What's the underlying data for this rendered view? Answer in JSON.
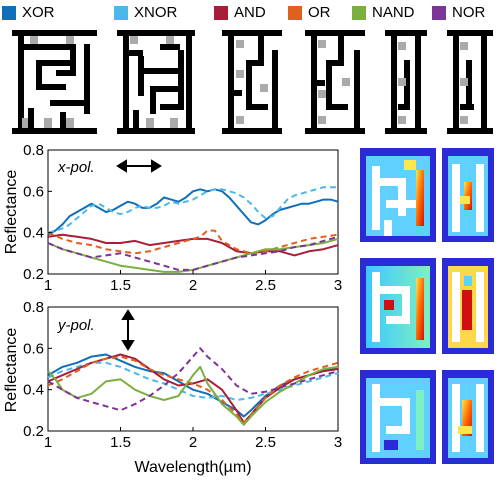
{
  "legend": [
    {
      "label": "XOR",
      "color": "#0f6fb8"
    },
    {
      "label": "XNOR",
      "color": "#4cb8ea"
    },
    {
      "label": "AND",
      "color": "#a81d3a"
    },
    {
      "label": "OR",
      "color": "#e0601e"
    },
    {
      "label": "NAND",
      "color": "#7ab040"
    },
    {
      "label": "NOR",
      "color": "#7c3596"
    }
  ],
  "chart_data": [
    {
      "type": "line",
      "annotation": "x-pol.",
      "xlabel": "",
      "ylabel": "Reflectance",
      "xlim": [
        1,
        3
      ],
      "ylim": [
        0.2,
        0.8
      ],
      "xticks": [
        "1",
        "1.5",
        "2",
        "2.5",
        "3"
      ],
      "yticks": [
        "0.2",
        "0.4",
        "0.6",
        "0.8"
      ],
      "series": [
        {
          "name": "XOR",
          "color": "#0f6fb8",
          "dash": false,
          "x": [
            1.0,
            1.05,
            1.1,
            1.15,
            1.2,
            1.25,
            1.3,
            1.35,
            1.4,
            1.45,
            1.5,
            1.55,
            1.6,
            1.65,
            1.7,
            1.75,
            1.8,
            1.85,
            1.9,
            1.95,
            2.0,
            2.05,
            2.1,
            2.15,
            2.2,
            2.25,
            2.3,
            2.35,
            2.4,
            2.45,
            2.5,
            2.55,
            2.6,
            2.65,
            2.7,
            2.75,
            2.8,
            2.85,
            2.9,
            2.95,
            3.0
          ],
          "y": [
            0.39,
            0.41,
            0.44,
            0.48,
            0.5,
            0.52,
            0.54,
            0.52,
            0.5,
            0.51,
            0.53,
            0.55,
            0.54,
            0.52,
            0.52,
            0.54,
            0.57,
            0.56,
            0.55,
            0.57,
            0.6,
            0.61,
            0.6,
            0.61,
            0.6,
            0.57,
            0.53,
            0.49,
            0.45,
            0.44,
            0.46,
            0.49,
            0.51,
            0.52,
            0.53,
            0.54,
            0.54,
            0.55,
            0.56,
            0.56,
            0.55
          ]
        },
        {
          "name": "XNOR",
          "color": "#4cb8ea",
          "dash": true,
          "x": [
            1.0,
            1.05,
            1.1,
            1.15,
            1.2,
            1.25,
            1.3,
            1.35,
            1.4,
            1.45,
            1.5,
            1.55,
            1.6,
            1.65,
            1.7,
            1.75,
            1.8,
            1.85,
            1.9,
            1.95,
            2.0,
            2.05,
            2.1,
            2.15,
            2.2,
            2.25,
            2.3,
            2.35,
            2.4,
            2.45,
            2.5,
            2.55,
            2.6,
            2.65,
            2.7,
            2.75,
            2.8,
            2.85,
            2.9,
            2.95,
            3.0
          ],
          "y": [
            0.4,
            0.41,
            0.42,
            0.44,
            0.47,
            0.5,
            0.53,
            0.54,
            0.52,
            0.5,
            0.49,
            0.5,
            0.52,
            0.53,
            0.52,
            0.52,
            0.53,
            0.55,
            0.54,
            0.55,
            0.56,
            0.58,
            0.6,
            0.61,
            0.61,
            0.6,
            0.59,
            0.57,
            0.54,
            0.5,
            0.47,
            0.48,
            0.52,
            0.56,
            0.58,
            0.59,
            0.6,
            0.61,
            0.62,
            0.62,
            0.62
          ]
        },
        {
          "name": "AND",
          "color": "#a81d3a",
          "dash": false,
          "x": [
            1.0,
            1.1,
            1.2,
            1.3,
            1.4,
            1.5,
            1.6,
            1.7,
            1.8,
            1.9,
            2.0,
            2.1,
            2.2,
            2.3,
            2.4,
            2.5,
            2.6,
            2.7,
            2.8,
            2.9,
            3.0
          ],
          "y": [
            0.38,
            0.39,
            0.38,
            0.37,
            0.35,
            0.35,
            0.36,
            0.34,
            0.35,
            0.36,
            0.37,
            0.37,
            0.35,
            0.31,
            0.3,
            0.31,
            0.31,
            0.29,
            0.31,
            0.32,
            0.34
          ]
        },
        {
          "name": "OR",
          "color": "#e0601e",
          "dash": true,
          "x": [
            1.0,
            1.1,
            1.2,
            1.3,
            1.4,
            1.5,
            1.6,
            1.7,
            1.8,
            1.9,
            2.0,
            2.05,
            2.1,
            2.15,
            2.2,
            2.3,
            2.4,
            2.5,
            2.6,
            2.7,
            2.8,
            2.9,
            3.0
          ],
          "y": [
            0.4,
            0.37,
            0.35,
            0.34,
            0.32,
            0.31,
            0.3,
            0.31,
            0.33,
            0.35,
            0.37,
            0.38,
            0.41,
            0.41,
            0.36,
            0.32,
            0.3,
            0.31,
            0.33,
            0.35,
            0.37,
            0.38,
            0.39
          ]
        },
        {
          "name": "NAND",
          "color": "#7ab040",
          "dash": false,
          "x": [
            1.0,
            1.1,
            1.2,
            1.3,
            1.4,
            1.5,
            1.6,
            1.7,
            1.8,
            1.9,
            2.0,
            2.1,
            2.2,
            2.3,
            2.4,
            2.5,
            2.6,
            2.7,
            2.8,
            2.9,
            3.0
          ],
          "y": [
            0.35,
            0.32,
            0.3,
            0.28,
            0.26,
            0.24,
            0.23,
            0.22,
            0.21,
            0.21,
            0.22,
            0.24,
            0.26,
            0.28,
            0.3,
            0.32,
            0.32,
            0.33,
            0.34,
            0.35,
            0.37
          ]
        },
        {
          "name": "NOR",
          "color": "#7c3596",
          "dash": true,
          "x": [
            1.0,
            1.1,
            1.2,
            1.3,
            1.4,
            1.5,
            1.6,
            1.7,
            1.8,
            1.9,
            2.0,
            2.1,
            2.2,
            2.3,
            2.4,
            2.5,
            2.6,
            2.7,
            2.8,
            2.9,
            3.0
          ],
          "y": [
            0.35,
            0.32,
            0.3,
            0.28,
            0.29,
            0.3,
            0.28,
            0.26,
            0.24,
            0.22,
            0.22,
            0.24,
            0.26,
            0.28,
            0.29,
            0.3,
            0.31,
            0.33,
            0.34,
            0.36,
            0.38
          ]
        }
      ]
    },
    {
      "type": "line",
      "annotation": "y-pol.",
      "xlabel": "Wavelength(µm)",
      "ylabel": "Reflectance",
      "xlim": [
        1,
        3
      ],
      "ylim": [
        0.2,
        0.8
      ],
      "xticks": [
        "1",
        "1.5",
        "2",
        "2.5",
        "3"
      ],
      "yticks": [
        "0.2",
        "0.4",
        "0.6",
        "0.8"
      ],
      "series": [
        {
          "name": "XOR",
          "color": "#0f6fb8",
          "dash": false,
          "x": [
            1.0,
            1.1,
            1.2,
            1.3,
            1.4,
            1.5,
            1.6,
            1.7,
            1.8,
            1.9,
            2.0,
            2.1,
            2.2,
            2.3,
            2.35,
            2.4,
            2.5,
            2.6,
            2.7,
            2.8,
            2.9,
            3.0
          ],
          "y": [
            0.47,
            0.51,
            0.53,
            0.56,
            0.57,
            0.54,
            0.51,
            0.49,
            0.48,
            0.44,
            0.4,
            0.38,
            0.34,
            0.3,
            0.27,
            0.3,
            0.37,
            0.42,
            0.45,
            0.47,
            0.49,
            0.51
          ]
        },
        {
          "name": "XNOR",
          "color": "#4cb8ea",
          "dash": true,
          "x": [
            1.0,
            1.1,
            1.2,
            1.3,
            1.4,
            1.5,
            1.6,
            1.7,
            1.8,
            1.9,
            2.0,
            2.1,
            2.2,
            2.3,
            2.4,
            2.5,
            2.6,
            2.7,
            2.8,
            2.9,
            3.0
          ],
          "y": [
            0.46,
            0.49,
            0.51,
            0.53,
            0.53,
            0.51,
            0.48,
            0.45,
            0.43,
            0.4,
            0.37,
            0.36,
            0.37,
            0.35,
            0.36,
            0.38,
            0.4,
            0.42,
            0.44,
            0.46,
            0.48
          ]
        },
        {
          "name": "AND",
          "color": "#a81d3a",
          "dash": false,
          "x": [
            1.0,
            1.1,
            1.2,
            1.3,
            1.4,
            1.5,
            1.6,
            1.7,
            1.8,
            1.9,
            2.0,
            2.1,
            2.2,
            2.3,
            2.35,
            2.4,
            2.5,
            2.6,
            2.7,
            2.8,
            2.9,
            3.0
          ],
          "y": [
            0.44,
            0.47,
            0.5,
            0.53,
            0.55,
            0.57,
            0.55,
            0.5,
            0.45,
            0.42,
            0.43,
            0.45,
            0.4,
            0.3,
            0.24,
            0.28,
            0.36,
            0.41,
            0.45,
            0.47,
            0.49,
            0.5
          ]
        },
        {
          "name": "OR",
          "color": "#e0601e",
          "dash": true,
          "x": [
            1.0,
            1.1,
            1.2,
            1.3,
            1.4,
            1.5,
            1.6,
            1.7,
            1.8,
            1.9,
            2.0,
            2.1,
            2.2,
            2.3,
            2.35,
            2.4,
            2.5,
            2.6,
            2.7,
            2.8,
            2.9,
            3.0
          ],
          "y": [
            0.42,
            0.45,
            0.49,
            0.53,
            0.55,
            0.56,
            0.54,
            0.5,
            0.47,
            0.45,
            0.43,
            0.4,
            0.35,
            0.28,
            0.24,
            0.28,
            0.36,
            0.42,
            0.46,
            0.49,
            0.51,
            0.53
          ]
        },
        {
          "name": "NAND",
          "color": "#7ab040",
          "dash": false,
          "x": [
            1.0,
            1.05,
            1.1,
            1.2,
            1.3,
            1.4,
            1.5,
            1.6,
            1.7,
            1.8,
            1.9,
            2.0,
            2.05,
            2.1,
            2.2,
            2.3,
            2.35,
            2.4,
            2.5,
            2.6,
            2.7,
            2.8,
            2.9,
            3.0
          ],
          "y": [
            0.49,
            0.45,
            0.4,
            0.36,
            0.38,
            0.44,
            0.45,
            0.4,
            0.37,
            0.35,
            0.37,
            0.47,
            0.51,
            0.43,
            0.33,
            0.27,
            0.23,
            0.27,
            0.34,
            0.39,
            0.43,
            0.47,
            0.5,
            0.51
          ]
        },
        {
          "name": "NOR",
          "color": "#7c3596",
          "dash": true,
          "x": [
            1.0,
            1.1,
            1.2,
            1.3,
            1.4,
            1.5,
            1.6,
            1.7,
            1.8,
            1.9,
            2.0,
            2.05,
            2.1,
            2.2,
            2.3,
            2.4,
            2.5,
            2.6,
            2.7,
            2.8,
            2.9,
            3.0
          ],
          "y": [
            0.44,
            0.4,
            0.36,
            0.34,
            0.32,
            0.3,
            0.33,
            0.37,
            0.42,
            0.48,
            0.56,
            0.6,
            0.56,
            0.5,
            0.42,
            0.38,
            0.39,
            0.41,
            0.43,
            0.45,
            0.47,
            0.49
          ]
        }
      ]
    }
  ],
  "structure_icons": [
    "xor-structure-icon",
    "xnor-structure-icon",
    "and-structure-icon",
    "or-structure-icon",
    "nand-structure-icon",
    "nor-structure-icon"
  ],
  "field_map_icons": [
    "field-map-1-icon",
    "field-map-2-icon",
    "field-map-3-icon",
    "field-map-4-icon",
    "field-map-5-icon",
    "field-map-6-icon"
  ]
}
